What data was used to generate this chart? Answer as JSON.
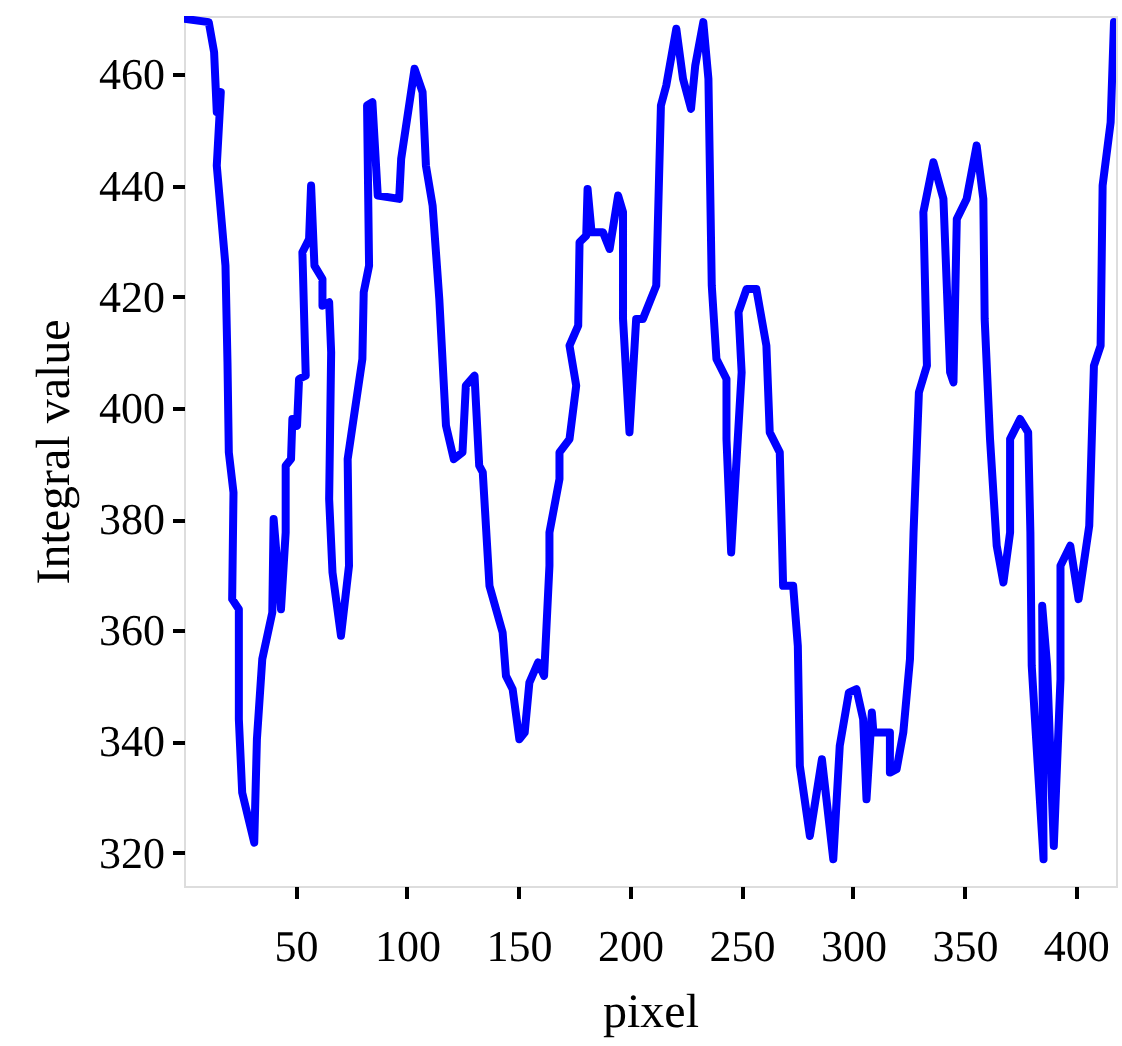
{
  "chart_data": {
    "type": "line",
    "xlabel": "pixel",
    "ylabel": "Integral value",
    "xlim": [
      0,
      418
    ],
    "ylim": [
      314,
      470.5
    ],
    "xticks": [
      50,
      100,
      150,
      200,
      250,
      300,
      350,
      400
    ],
    "yticks": [
      320,
      340,
      360,
      380,
      400,
      420,
      440,
      460
    ],
    "grid": false,
    "series": [
      {
        "color": "#0000ff",
        "x": [
          0,
          11.1,
          13.5,
          14.7,
          16.5,
          14.7,
          18.6,
          19.5,
          20.1,
          22.2,
          21.6,
          24.6,
          24.6,
          26.1,
          31.5,
          32.7,
          35.1,
          39.6,
          40.2,
          43.5,
          45.6,
          45.6,
          48,
          48.6,
          50.7,
          51.6,
          54.6,
          53.1,
          56.1,
          57,
          58.5,
          62.1,
          62.1,
          65.1,
          66,
          65.1,
          66.6,
          70.4,
          74,
          73.4,
          80,
          80.6,
          83,
          82.1,
          84.5,
          86.9,
          96.5,
          97.4,
          103.4,
          107,
          108.5,
          111.5,
          114.5,
          117.5,
          121,
          124.9,
          126.4,
          130.3,
          132.4,
          134,
          137,
          142.9,
          144.4,
          147.4,
          150.4,
          152.8,
          154.9,
          158.8,
          161.5,
          163.9,
          163.9,
          168.4,
          168.4,
          172.9,
          175.9,
          172.9,
          176.8,
          177.4,
          180.4,
          181,
          182.8,
          187.9,
          190.9,
          194.7,
          196.9,
          196.9,
          199.8,
          202.8,
          205.8,
          211.8,
          213.9,
          216.3,
          220.8,
          223.8,
          227.4,
          229.3,
          232.9,
          235.2,
          236.7,
          238.8,
          243.3,
          243.3,
          245.4,
          250.1,
          248.7,
          252.3,
          256.7,
          261.2,
          262.7,
          267.2,
          268.7,
          273.2,
          275.3,
          276.2,
          280.7,
          286.1,
          291.2,
          294.1,
          298.2,
          301.6,
          304.6,
          306.1,
          308.5,
          309.2,
          316.6,
          316.6,
          319.6,
          322.6,
          325.6,
          327.2,
          329.6,
          333.2,
          331.6,
          336.1,
          340.6,
          343.6,
          345.1,
          346.6,
          351,
          355.5,
          358.5,
          359.1,
          361.5,
          364.5,
          367.5,
          370.5,
          370.5,
          375,
          378.6,
          379.6,
          380.2,
          382,
          385.5,
          384.9,
          387.1,
          390.1,
          393.1,
          393.1,
          397.5,
          401.2,
          406,
          408.1,
          411.1,
          412,
          415.6,
          417.1
        ],
        "values": [
          470,
          469.4,
          464,
          453.2,
          456.8,
          443.6,
          425.6,
          408.2,
          392,
          384.8,
          365.6,
          363.8,
          344,
          330.8,
          321.8,
          340.4,
          354.8,
          363.2,
          380,
          363.8,
          377.6,
          389.6,
          390.8,
          398,
          396.8,
          405.2,
          405.8,
          428,
          430.4,
          440,
          425.6,
          423.2,
          418.4,
          419,
          410,
          383.6,
          370.4,
          359,
          371.6,
          390.8,
          408.8,
          420.8,
          425.6,
          454.4,
          455,
          438.2,
          437.6,
          444.8,
          461,
          456.8,
          443.6,
          436.4,
          419.6,
          396.8,
          390.8,
          392,
          404,
          405.8,
          389.6,
          388.4,
          368,
          359.6,
          351.8,
          349.4,
          340.4,
          341.6,
          350.6,
          354.2,
          351.8,
          371.6,
          377.6,
          387.2,
          392,
          394.4,
          404,
          411.2,
          414.8,
          429.8,
          431,
          439.4,
          431.6,
          431.6,
          428.6,
          438.2,
          435.2,
          416,
          395.6,
          416,
          416,
          422,
          454.4,
          458,
          468.2,
          459.2,
          453.8,
          461.6,
          469.4,
          459.2,
          422,
          408.8,
          405.2,
          394.4,
          374,
          406.4,
          417.2,
          421.4,
          421.4,
          411.2,
          395.6,
          392,
          368,
          368,
          357.2,
          335.6,
          323,
          336.8,
          318.8,
          339.2,
          348.8,
          349.4,
          344,
          329.6,
          345.2,
          341.6,
          341.6,
          334.4,
          335,
          341.6,
          354.8,
          377.6,
          402.8,
          407.6,
          435.2,
          444.2,
          437.6,
          406.4,
          404.6,
          434,
          437.6,
          447.2,
          437.6,
          416,
          394.4,
          375.2,
          368.6,
          377.6,
          394.4,
          398,
          395.6,
          377.6,
          353.6,
          341.6,
          318.8,
          364.4,
          353.6,
          321.2,
          351.2,
          371.6,
          375.2,
          365.6,
          378.8,
          407.6,
          411.2,
          440,
          451.4,
          469.4
        ]
      }
    ]
  }
}
